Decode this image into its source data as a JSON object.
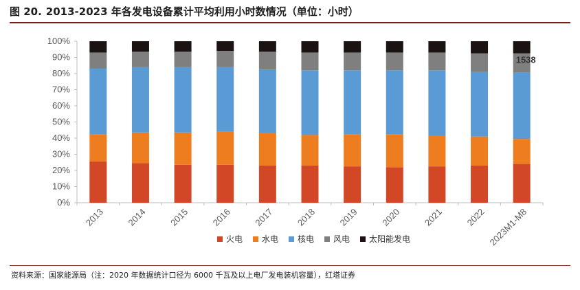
{
  "header": {
    "figure_label": "图 20.",
    "title": "2013-2023 年各发电设备累计平均利用小时数情况（单位：小时）"
  },
  "source_note": "资料来源：国家能源局（注：2020 年数据统计口径为 6000 千瓦及以上电厂发电装机容量），红塔证券",
  "chart_data": {
    "type": "bar",
    "stacked": true,
    "percent": true,
    "title": "",
    "xlabel": "",
    "ylabel": "",
    "ylim": [
      0,
      100
    ],
    "yticks": [
      "0%",
      "10%",
      "20%",
      "30%",
      "40%",
      "50%",
      "60%",
      "70%",
      "80%",
      "90%",
      "100%"
    ],
    "grid": false,
    "legend_position": "bottom",
    "categories": [
      "2013",
      "2014",
      "2015",
      "2016",
      "2017",
      "2018",
      "2019",
      "2020",
      "2021",
      "2022",
      "2023M1-M8"
    ],
    "series": [
      {
        "name": "火电",
        "color": "#d24726",
        "values": [
          25.5,
          24.5,
          23.5,
          23.5,
          23,
          23,
          22.5,
          22,
          22.5,
          23,
          24
        ]
      },
      {
        "name": "水电",
        "color": "#ed7d1f",
        "values": [
          17,
          19,
          20,
          20.5,
          20,
          19,
          20,
          20.5,
          19,
          18,
          15.5
        ]
      },
      {
        "name": "核电",
        "color": "#5b9bd5",
        "values": [
          40.5,
          40.5,
          40.5,
          40,
          39.5,
          40,
          39.5,
          39.5,
          40.5,
          40,
          41
        ]
      },
      {
        "name": "风电",
        "color": "#7f7f7f",
        "values": [
          10,
          9.5,
          9.5,
          10,
          11,
          11,
          11,
          11,
          11,
          11.5,
          12
        ]
      },
      {
        "name": "太阳能发电",
        "color": "#1a1311",
        "values": [
          7,
          6.5,
          6.5,
          6,
          6.5,
          7,
          7,
          7,
          7,
          7.5,
          7.5
        ]
      }
    ],
    "annotations": [
      {
        "category": "2023M1-M8",
        "text": "1538"
      }
    ]
  }
}
